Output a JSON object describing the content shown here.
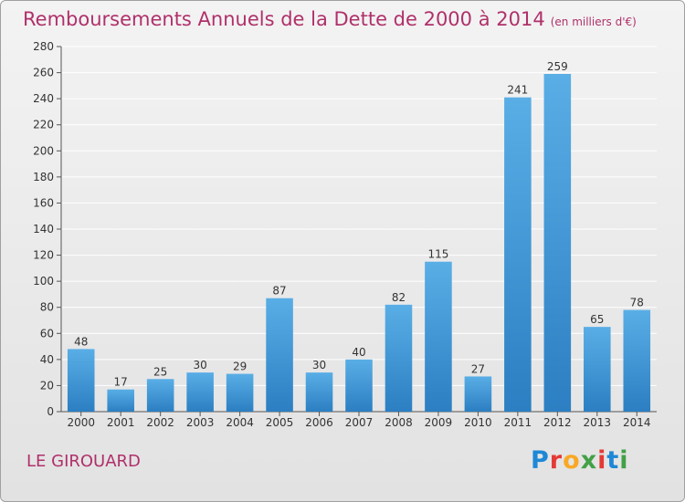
{
  "header": {
    "title": "Remboursements Annuels de la Dette de 2000 à 2014",
    "unit": "(en milliers d'€)"
  },
  "footer": {
    "commune": "LE GIROUARD",
    "brand": [
      "P",
      "r",
      "o",
      "x",
      "i",
      "t",
      "i"
    ],
    "brand_colors": [
      "#1e88d6",
      "#e53935",
      "#f9a825",
      "#43a047",
      "#e53935",
      "#1e88d6",
      "#43a047"
    ]
  },
  "chart_data": {
    "type": "bar",
    "title": "Remboursements Annuels de la Dette de 2000 à 2014",
    "subtitle": "(en milliers d'€)",
    "xlabel": "",
    "ylabel": "",
    "categories": [
      "2000",
      "2001",
      "2002",
      "2003",
      "2004",
      "2005",
      "2006",
      "2007",
      "2008",
      "2009",
      "2010",
      "2011",
      "2012",
      "2013",
      "2014"
    ],
    "values": [
      48,
      17,
      25,
      30,
      29,
      87,
      30,
      40,
      82,
      115,
      27,
      241,
      259,
      65,
      78
    ],
    "ylim": [
      0,
      280
    ],
    "yticks": [
      0,
      20,
      40,
      60,
      80,
      100,
      120,
      140,
      160,
      180,
      200,
      220,
      240,
      260,
      280
    ],
    "grid": true,
    "bar_color_light": "#5aaee6",
    "bar_color_dark": "#2b7fc2",
    "label_color": "#333333"
  }
}
